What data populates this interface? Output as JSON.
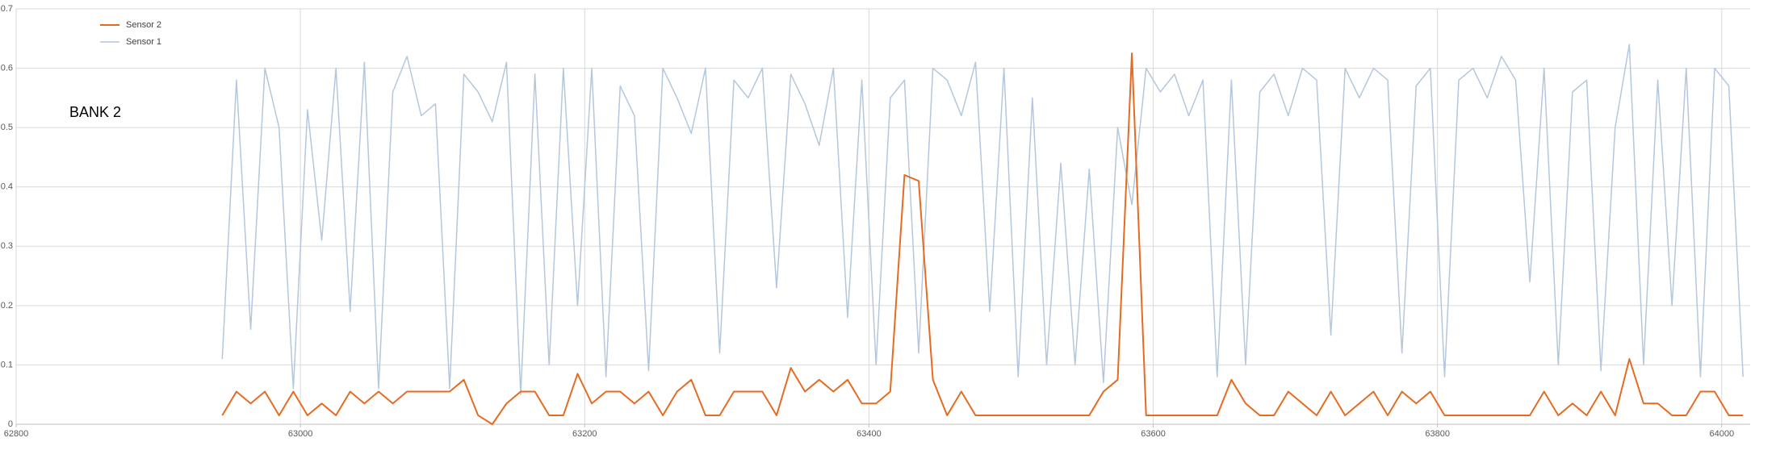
{
  "chart_data": {
    "type": "line",
    "annotation": "BANK 2",
    "x": [
      62945,
      62955,
      62965,
      62975,
      62985,
      62995,
      63005,
      63015,
      63025,
      63035,
      63045,
      63055,
      63065,
      63075,
      63085,
      63095,
      63105,
      63115,
      63125,
      63135,
      63145,
      63155,
      63165,
      63175,
      63185,
      63195,
      63205,
      63215,
      63225,
      63235,
      63245,
      63255,
      63265,
      63275,
      63285,
      63295,
      63305,
      63315,
      63325,
      63335,
      63345,
      63355,
      63365,
      63375,
      63385,
      63395,
      63405,
      63415,
      63425,
      63435,
      63445,
      63455,
      63465,
      63475,
      63485,
      63495,
      63505,
      63515,
      63525,
      63535,
      63545,
      63555,
      63565,
      63575,
      63585,
      63595,
      63605,
      63615,
      63625,
      63635,
      63645,
      63655,
      63665,
      63675,
      63685,
      63695,
      63705,
      63715,
      63725,
      63735,
      63745,
      63755,
      63765,
      63775,
      63785,
      63795,
      63805,
      63815,
      63825,
      63835,
      63845,
      63855,
      63865,
      63875,
      63885,
      63895,
      63905,
      63915,
      63925,
      63935,
      63945,
      63955,
      63965,
      63975,
      63985,
      63995,
      64005,
      64015
    ],
    "series": [
      {
        "name": "Sensor 2",
        "color": "#e46c22",
        "width": 2,
        "values": [
          0.015,
          0.055,
          0.035,
          0.055,
          0.015,
          0.055,
          0.015,
          0.035,
          0.015,
          0.055,
          0.035,
          0.055,
          0.035,
          0.055,
          0.055,
          0.055,
          0.055,
          0.075,
          0.015,
          0.0,
          0.035,
          0.055,
          0.055,
          0.015,
          0.015,
          0.085,
          0.035,
          0.055,
          0.055,
          0.035,
          0.055,
          0.015,
          0.055,
          0.075,
          0.015,
          0.015,
          0.055,
          0.055,
          0.055,
          0.015,
          0.095,
          0.055,
          0.075,
          0.055,
          0.075,
          0.035,
          0.035,
          0.055,
          0.42,
          0.41,
          0.075,
          0.015,
          0.055,
          0.015,
          0.015,
          0.015,
          0.015,
          0.015,
          0.015,
          0.015,
          0.015,
          0.015,
          0.055,
          0.075,
          0.625,
          0.015,
          0.015,
          0.015,
          0.015,
          0.015,
          0.015,
          0.075,
          0.035,
          0.015,
          0.015,
          0.055,
          0.035,
          0.015,
          0.055,
          0.015,
          0.035,
          0.055,
          0.015,
          0.055,
          0.035,
          0.055,
          0.015,
          0.015,
          0.015,
          0.015,
          0.015,
          0.015,
          0.015,
          0.055,
          0.015,
          0.035,
          0.015,
          0.055,
          0.015,
          0.11,
          0.035,
          0.035,
          0.015,
          0.015,
          0.055,
          0.055,
          0.015,
          0.015
        ]
      },
      {
        "name": "Sensor 1",
        "color": "#b4c7dc",
        "width": 1.5,
        "values": [
          0.11,
          0.58,
          0.16,
          0.6,
          0.5,
          0.06,
          0.53,
          0.31,
          0.6,
          0.19,
          0.61,
          0.06,
          0.56,
          0.62,
          0.52,
          0.54,
          0.06,
          0.59,
          0.56,
          0.51,
          0.61,
          0.05,
          0.59,
          0.1,
          0.6,
          0.2,
          0.6,
          0.08,
          0.57,
          0.52,
          0.09,
          0.6,
          0.55,
          0.49,
          0.6,
          0.12,
          0.58,
          0.55,
          0.6,
          0.23,
          0.59,
          0.54,
          0.47,
          0.6,
          0.18,
          0.58,
          0.1,
          0.55,
          0.58,
          0.12,
          0.6,
          0.58,
          0.52,
          0.61,
          0.19,
          0.6,
          0.08,
          0.55,
          0.1,
          0.44,
          0.1,
          0.43,
          0.07,
          0.5,
          0.37,
          0.6,
          0.56,
          0.59,
          0.52,
          0.58,
          0.08,
          0.58,
          0.1,
          0.56,
          0.59,
          0.52,
          0.6,
          0.58,
          0.15,
          0.6,
          0.55,
          0.6,
          0.58,
          0.12,
          0.57,
          0.6,
          0.08,
          0.58,
          0.6,
          0.55,
          0.62,
          0.58,
          0.24,
          0.6,
          0.1,
          0.56,
          0.58,
          0.09,
          0.5,
          0.64,
          0.1,
          0.58,
          0.2,
          0.6,
          0.08,
          0.6,
          0.57,
          0.08
        ]
      }
    ],
    "xlim": [
      62800,
      64020
    ],
    "xticks": [
      62800,
      63000,
      63200,
      63400,
      63600,
      63800,
      64000
    ],
    "ylim": [
      0,
      0.7
    ],
    "yticks": [
      0,
      0.1,
      0.2,
      0.3,
      0.4,
      0.5,
      0.6,
      0.7
    ],
    "grid": true,
    "legend": "top-left"
  }
}
